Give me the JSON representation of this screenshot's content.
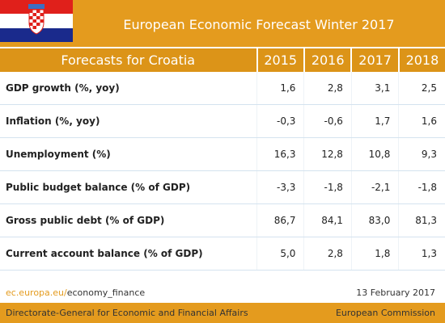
{
  "header": {
    "title": "European Economic Forecast Winter 2017"
  },
  "table": {
    "columns": [
      "Forecasts for Croatia",
      "2015",
      "2016",
      "2017",
      "2018"
    ],
    "rows": [
      [
        "GDP growth (%, yoy)",
        "1,6",
        "2,8",
        "3,1",
        "2,5"
      ],
      [
        "Inflation (%, yoy)",
        "-0,3",
        "-0,6",
        "1,7",
        "1,6"
      ],
      [
        "Unemployment (%)",
        "16,3",
        "12,8",
        "10,8",
        "9,3"
      ],
      [
        "Public budget balance (% of GDP)",
        "-3,3",
        "-1,8",
        "-2,1",
        "-1,8"
      ],
      [
        "Gross public debt (% of GDP)",
        "86,7",
        "84,1",
        "83,0",
        "81,3"
      ],
      [
        "Current account balance (% of GDP)",
        "5,0",
        "2,8",
        "1,8",
        "1,3"
      ]
    ]
  },
  "footer": {
    "site": "ec.europa.eu/",
    "path": "economy_finance",
    "date": "13 February 2017",
    "directorate": "Directorate-General for Economic and Financial Affairs",
    "commission": "European Commission"
  }
}
